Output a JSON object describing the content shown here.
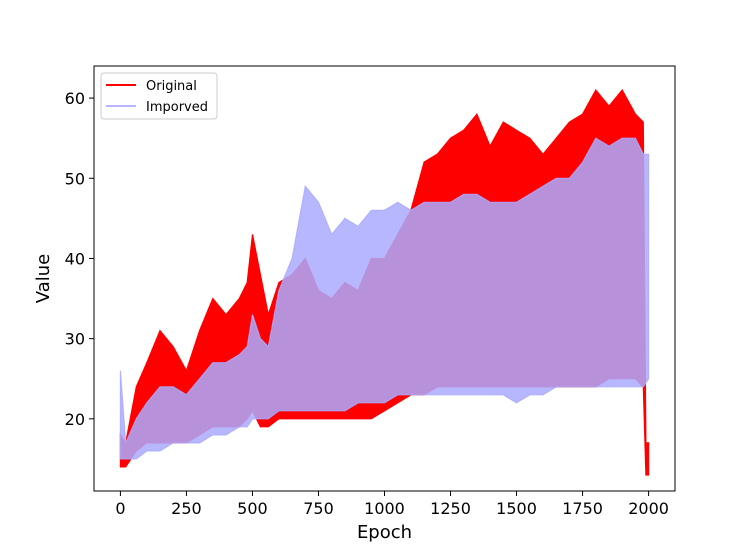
{
  "chart_data": {
    "type": "line",
    "xlabel": "Epoch",
    "ylabel": "Value",
    "xlim": [
      -100,
      2100
    ],
    "ylim": [
      11,
      64
    ],
    "xticks": [
      0,
      250,
      500,
      750,
      1000,
      1250,
      1500,
      1750,
      2000
    ],
    "yticks": [
      20,
      30,
      40,
      50,
      60
    ],
    "grid": false,
    "legend": {
      "placement": "upper-left"
    },
    "series": [
      {
        "name": "Original",
        "color": "#ff0000",
        "opacity": 1.0,
        "x": [
          0,
          20,
          60,
          100,
          150,
          200,
          250,
          300,
          350,
          400,
          450,
          480,
          500,
          530,
          560,
          600,
          650,
          700,
          750,
          800,
          850,
          900,
          950,
          1000,
          1050,
          1100,
          1150,
          1200,
          1250,
          1300,
          1350,
          1400,
          1450,
          1500,
          1550,
          1600,
          1650,
          1700,
          1750,
          1800,
          1850,
          1900,
          1950,
          1980,
          1990,
          2000
        ],
        "high": [
          18,
          17,
          24,
          27,
          31,
          29,
          26,
          31,
          35,
          33,
          35,
          37,
          43,
          38,
          33,
          37,
          38,
          40,
          36,
          35,
          37,
          36,
          40,
          40,
          43,
          46,
          52,
          53,
          55,
          56,
          58,
          54,
          57,
          56,
          55,
          53,
          55,
          57,
          58,
          61,
          59,
          61,
          58,
          57,
          17,
          17
        ],
        "low": [
          14,
          14,
          16,
          17,
          17,
          17,
          17,
          18,
          19,
          19,
          19,
          20,
          21,
          19,
          19,
          20,
          20,
          20,
          20,
          20,
          20,
          20,
          20,
          21,
          22,
          23,
          23,
          24,
          24,
          24,
          24,
          24,
          24,
          24,
          24,
          24,
          24,
          24,
          24,
          24,
          25,
          25,
          25,
          24,
          13,
          13
        ]
      },
      {
        "name": "Imporved",
        "color": "#aaaaff",
        "opacity": 0.85,
        "x": [
          0,
          20,
          60,
          100,
          150,
          200,
          250,
          300,
          350,
          400,
          450,
          480,
          500,
          530,
          560,
          600,
          650,
          700,
          750,
          800,
          850,
          900,
          950,
          1000,
          1050,
          1100,
          1150,
          1200,
          1250,
          1300,
          1350,
          1400,
          1450,
          1500,
          1550,
          1600,
          1650,
          1700,
          1750,
          1800,
          1850,
          1900,
          1950,
          1980,
          2000
        ],
        "high": [
          26,
          17,
          20,
          22,
          24,
          24,
          23,
          25,
          27,
          27,
          28,
          29,
          33,
          30,
          29,
          36,
          40,
          49,
          47,
          43,
          45,
          44,
          46,
          46,
          47,
          46,
          47,
          47,
          47,
          48,
          48,
          47,
          47,
          47,
          48,
          49,
          50,
          50,
          52,
          55,
          54,
          55,
          55,
          53,
          53
        ],
        "low": [
          15,
          15,
          15,
          16,
          16,
          17,
          17,
          17,
          18,
          18,
          19,
          19,
          20,
          20,
          20,
          21,
          21,
          21,
          21,
          21,
          21,
          22,
          22,
          22,
          23,
          23,
          23,
          23,
          23,
          23,
          23,
          23,
          23,
          22,
          23,
          23,
          24,
          24,
          24,
          24,
          24,
          24,
          24,
          24,
          25
        ]
      }
    ]
  }
}
